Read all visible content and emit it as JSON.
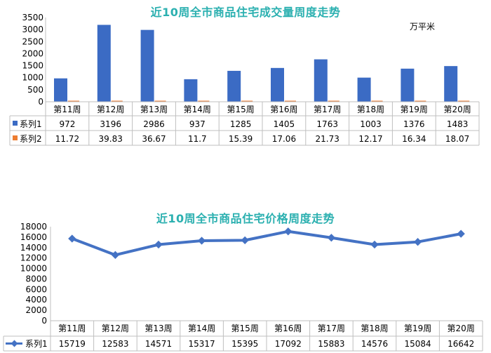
{
  "chart_data": [
    {
      "type": "bar",
      "title": "近10周全市商品住宅成交量周度走势",
      "unit": "万平米",
      "categories": [
        "第11周",
        "第12周",
        "第13周",
        "第14周",
        "第15周",
        "第16周",
        "第17周",
        "第18周",
        "第19周",
        "第20周"
      ],
      "series": [
        {
          "name": "系列1",
          "values": [
            972,
            3196,
            2986,
            937,
            1285,
            1405,
            1763,
            1003,
            1376,
            1483
          ],
          "color": "#3b6bc4"
        },
        {
          "name": "系列2",
          "values": [
            11.72,
            39.83,
            36.67,
            11.7,
            15.39,
            17.06,
            21.73,
            12.17,
            16.34,
            18.07
          ],
          "color": "#ed7d31"
        }
      ],
      "display_values": [
        [
          "972",
          "3196",
          "2986",
          "937",
          "1285",
          "1405",
          "1763",
          "1003",
          "1376",
          "1483"
        ],
        [
          "11.72",
          "39.83",
          "36.67",
          "11.7",
          "15.39",
          "17.06",
          "21.73",
          "12.17",
          "16.34",
          "18.07"
        ]
      ],
      "yticks": [
        "0",
        "500",
        "1000",
        "1500",
        "2000",
        "2500",
        "3000",
        "3500"
      ],
      "ylim": [
        0,
        3500
      ],
      "grid": false,
      "data_table": true
    },
    {
      "type": "line",
      "title": "近10周全市商品住宅价格周度走势",
      "categories": [
        "第11周",
        "第12周",
        "第13周",
        "第14周",
        "第15周",
        "第16周",
        "第17周",
        "第18周",
        "第19周",
        "第20周"
      ],
      "series": [
        {
          "name": "系列1",
          "values": [
            15719,
            12583,
            14571,
            15317,
            15395,
            17092,
            15883,
            14576,
            15084,
            16642
          ],
          "color": "#4472c4"
        }
      ],
      "display_values": [
        [
          "15719",
          "12583",
          "14571",
          "15317",
          "15395",
          "17092",
          "15883",
          "14576",
          "15084",
          "16642"
        ]
      ],
      "yticks": [
        "0",
        "2000",
        "4000",
        "6000",
        "8000",
        "10000",
        "12000",
        "14000",
        "16000",
        "18000"
      ],
      "ylim": [
        0,
        18000
      ],
      "grid": false,
      "data_table": true
    }
  ]
}
